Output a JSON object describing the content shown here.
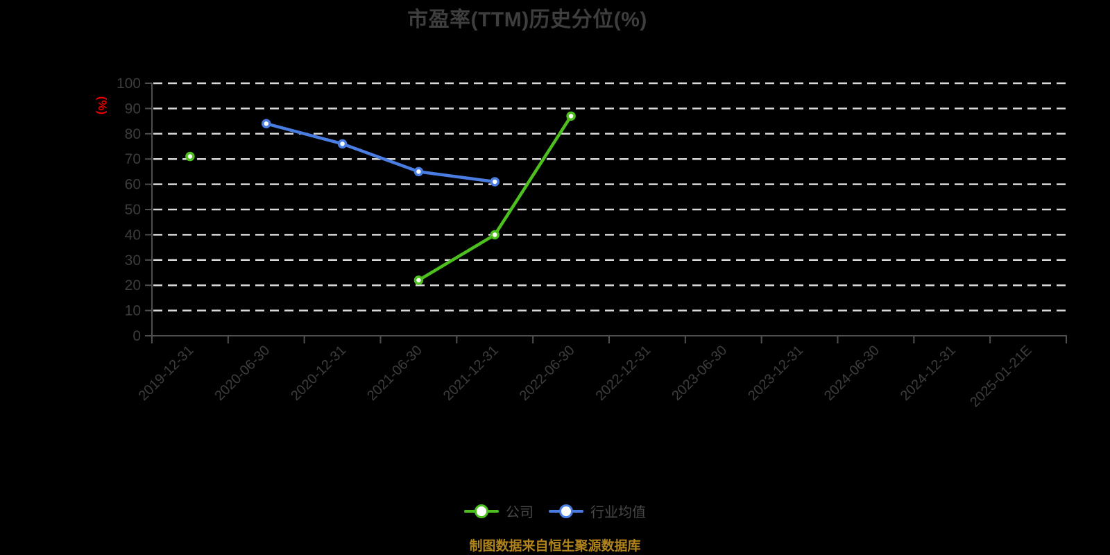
{
  "chart": {
    "colors": {
      "background": "#000000",
      "title": "#3e3e3e",
      "axis_line": "#4f4f4f",
      "axis_label": "#3d3d3d",
      "gridline": "#d9d9d9",
      "unit_label_red": "#e60000",
      "caption_gold": "#b0841a",
      "legend_text": "#484848",
      "marker_fill": "#ffffff"
    }
  },
  "chart_data": {
    "type": "line",
    "title": "市盈率(TTM)历史分位(%)",
    "ylabel": "(%)",
    "xlabel": "",
    "ylim": [
      0,
      100
    ],
    "ytick_interval": 10,
    "grid": "horizontal-dashed-white",
    "legend_position": "bottom",
    "x_label_rotation_deg": 45,
    "categories": [
      "2019-12-31",
      "2020-06-30",
      "2020-12-31",
      "2021-06-30",
      "2021-12-31",
      "2022-06-30",
      "2022-12-31",
      "2023-06-30",
      "2023-12-31",
      "2024-06-30",
      "2024-12-31",
      "2025-01-21E"
    ],
    "series": [
      {
        "name": "公司",
        "color": "#4dbf1f",
        "values": [
          71,
          null,
          null,
          22,
          40,
          87,
          null,
          null,
          null,
          null,
          null,
          null
        ]
      },
      {
        "name": "行业均值",
        "color": "#4a7de2",
        "values": [
          null,
          84,
          76,
          65,
          61,
          null,
          null,
          null,
          null,
          null,
          null,
          null
        ]
      }
    ]
  },
  "footer": {
    "caption": "制图数据来自恒生聚源数据库"
  }
}
